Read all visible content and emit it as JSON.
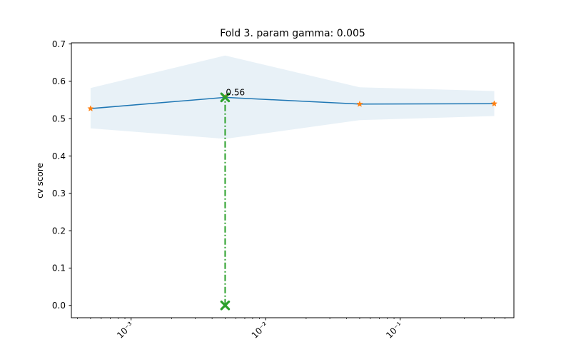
{
  "chart_data": {
    "type": "line",
    "title": "Fold 3. param gamma: 0.005",
    "xlabel": "",
    "ylabel": "cv score",
    "x_scale": "log",
    "xlim": [
      0.00036,
      0.7
    ],
    "ylim": [
      -0.033,
      0.703
    ],
    "grid": false,
    "legend": "none",
    "x_tick_labels": [
      {
        "value": 0.001,
        "label": "10⁻³"
      },
      {
        "value": 0.01,
        "label": "10⁻²"
      },
      {
        "value": 0.1,
        "label": "10⁻¹"
      }
    ],
    "y_ticks": [
      0.0,
      0.1,
      0.2,
      0.3,
      0.4,
      0.5,
      0.6,
      0.7
    ],
    "y_tick_labels": [
      "0.0",
      "0.1",
      "0.2",
      "0.3",
      "0.4",
      "0.5",
      "0.6",
      "0.7"
    ],
    "series": [
      {
        "x": [
          0.0005,
          0.005,
          0.05,
          0.5
        ],
        "y": [
          0.527,
          0.557,
          0.539,
          0.54
        ],
        "band_lower": [
          0.474,
          0.446,
          0.496,
          0.507
        ],
        "band_upper": [
          0.582,
          0.669,
          0.584,
          0.574
        ]
      }
    ],
    "best_point": {
      "x": 0.005,
      "y": 0.557,
      "label": "0.56"
    },
    "colors": {
      "line": "#1f77b4",
      "band": "#1f77b4",
      "markers": "#ff7f0e",
      "best": "#2ca02c"
    }
  }
}
